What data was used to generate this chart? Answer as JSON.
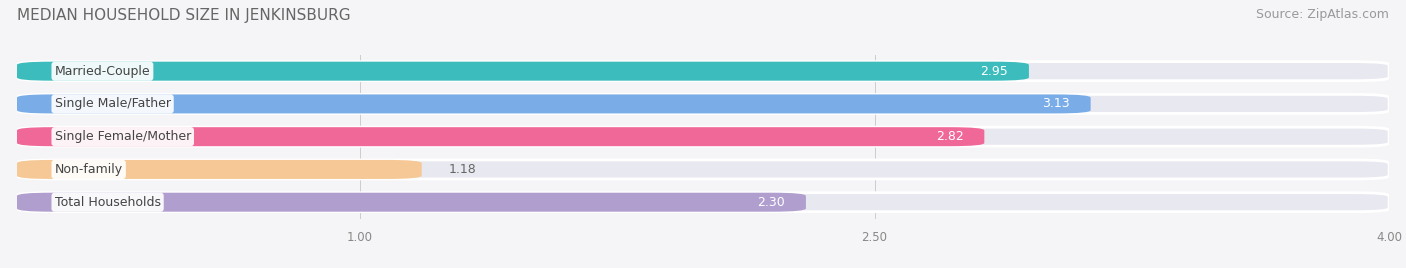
{
  "title": "MEDIAN HOUSEHOLD SIZE IN JENKINSBURG",
  "source": "Source: ZipAtlas.com",
  "categories": [
    "Married-Couple",
    "Single Male/Father",
    "Single Female/Mother",
    "Non-family",
    "Total Households"
  ],
  "values": [
    2.95,
    3.13,
    2.82,
    1.18,
    2.3
  ],
  "colors": [
    "#3cbcbc",
    "#7aade8",
    "#f06898",
    "#f5c896",
    "#b09ece"
  ],
  "bar_bg_color": "#e8e8f0",
  "xlim": [
    0,
    4.0
  ],
  "xticks": [
    1.0,
    2.5,
    4.0
  ],
  "title_fontsize": 11,
  "source_fontsize": 9,
  "label_fontsize": 9,
  "value_fontsize": 9,
  "bar_height": 0.58,
  "background_color": "#f5f5f8",
  "bar_gap": 0.08
}
